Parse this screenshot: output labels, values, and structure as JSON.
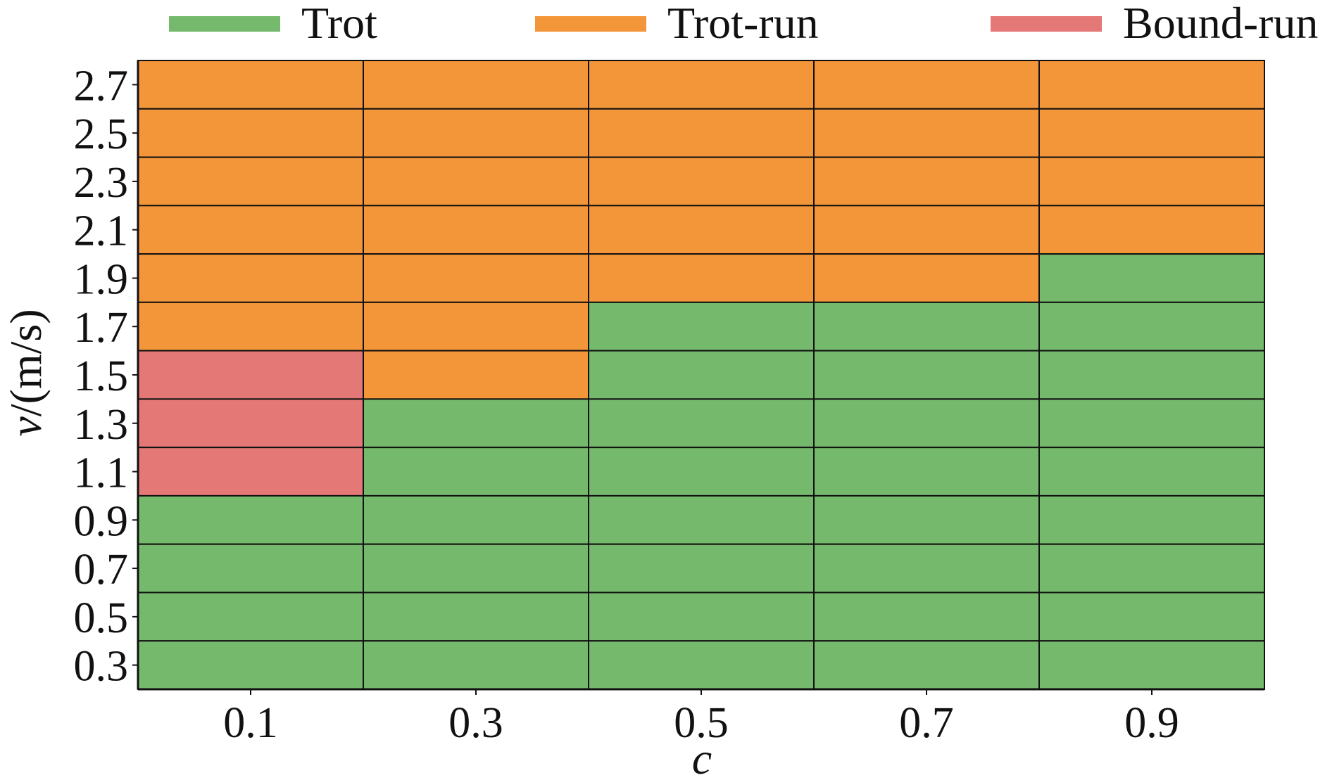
{
  "chart_data": {
    "type": "heatmap",
    "title": "",
    "xlabel": "c",
    "ylabel": "v/(m/s)",
    "x_categories": [
      "0.1",
      "0.3",
      "0.5",
      "0.7",
      "0.9"
    ],
    "y_categories": [
      "2.7",
      "2.5",
      "2.3",
      "2.1",
      "1.9",
      "1.7",
      "1.5",
      "1.3",
      "1.1",
      "0.9",
      "0.7",
      "0.5",
      "0.3"
    ],
    "legend": [
      {
        "key": "trot",
        "label": "Trot",
        "color": "#75b96d"
      },
      {
        "key": "trot-run",
        "label": "Trot-run",
        "color": "#f3963a"
      },
      {
        "key": "bound-run",
        "label": "Bound-run",
        "color": "#e37876"
      }
    ],
    "legend_position": "top",
    "grid": true,
    "cells": [
      [
        "trot-run",
        "trot-run",
        "trot-run",
        "trot-run",
        "trot-run"
      ],
      [
        "trot-run",
        "trot-run",
        "trot-run",
        "trot-run",
        "trot-run"
      ],
      [
        "trot-run",
        "trot-run",
        "trot-run",
        "trot-run",
        "trot-run"
      ],
      [
        "trot-run",
        "trot-run",
        "trot-run",
        "trot-run",
        "trot-run"
      ],
      [
        "trot-run",
        "trot-run",
        "trot-run",
        "trot-run",
        "trot"
      ],
      [
        "trot-run",
        "trot-run",
        "trot",
        "trot",
        "trot"
      ],
      [
        "bound-run",
        "trot-run",
        "trot",
        "trot",
        "trot"
      ],
      [
        "bound-run",
        "trot",
        "trot",
        "trot",
        "trot"
      ],
      [
        "bound-run",
        "trot",
        "trot",
        "trot",
        "trot"
      ],
      [
        "trot",
        "trot",
        "trot",
        "trot",
        "trot"
      ],
      [
        "trot",
        "trot",
        "trot",
        "trot",
        "trot"
      ],
      [
        "trot",
        "trot",
        "trot",
        "trot",
        "trot"
      ],
      [
        "trot",
        "trot",
        "trot",
        "trot",
        "trot"
      ]
    ]
  }
}
